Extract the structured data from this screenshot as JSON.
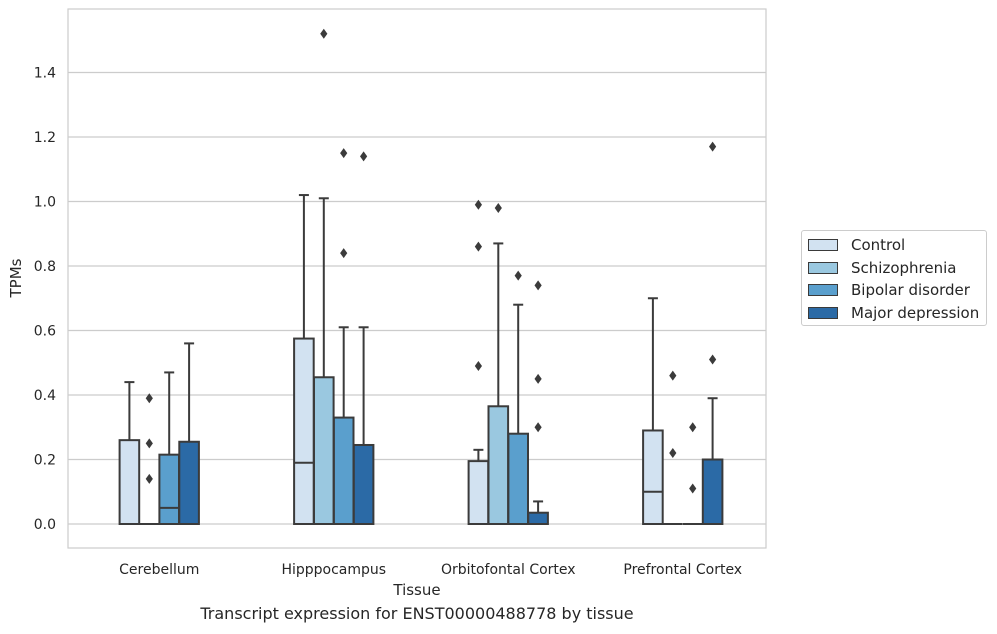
{
  "chart_data": {
    "type": "box",
    "title": "",
    "caption": "Transcript expression for ENST00000488778 by tissue",
    "xlabel": "Tissue",
    "ylabel": "TPMs",
    "ylim": [
      -0.07,
      1.6
    ],
    "yticks": [
      "0.0",
      "0.2",
      "0.4",
      "0.6",
      "0.8",
      "1.0",
      "1.2",
      "1.4"
    ],
    "grid": "horizontal",
    "legend_position": "right",
    "categories": [
      "Cerebellum",
      "Hipppocampus",
      "Orbitofontal Cortex",
      "Prefrontal Cortex"
    ],
    "series": [
      {
        "name": "Control",
        "color": "#d2e2f1",
        "boxes": [
          {
            "min": 0,
            "q1": 0,
            "median": 0,
            "q3": 0.26,
            "max": 0.44,
            "outliers": []
          },
          {
            "min": 0,
            "q1": 0,
            "median": 0.19,
            "q3": 0.575,
            "max": 1.02,
            "outliers": []
          },
          {
            "min": 0,
            "q1": 0,
            "median": 0,
            "q3": 0.195,
            "max": 0.23,
            "outliers": [
              0.49,
              0.86,
              0.99
            ]
          },
          {
            "min": 0,
            "q1": 0,
            "median": 0.1,
            "q3": 0.29,
            "max": 0.7,
            "outliers": []
          }
        ]
      },
      {
        "name": "Schizophrenia",
        "color": "#9ac8e0",
        "boxes": [
          {
            "min": 0,
            "q1": 0,
            "median": 0,
            "q3": 0,
            "max": 0,
            "outliers": [
              0.14,
              0.25,
              0.39
            ]
          },
          {
            "min": 0,
            "q1": 0,
            "median": 0,
            "q3": 0.455,
            "max": 1.01,
            "outliers": [
              1.52
            ]
          },
          {
            "min": 0,
            "q1": 0,
            "median": 0,
            "q3": 0.365,
            "max": 0.87,
            "outliers": [
              0.98
            ]
          },
          {
            "min": 0,
            "q1": 0,
            "median": 0,
            "q3": 0,
            "max": 0,
            "outliers": [
              0.22,
              0.46
            ]
          }
        ]
      },
      {
        "name": "Bipolar disorder",
        "color": "#5a9fcd",
        "boxes": [
          {
            "min": 0,
            "q1": 0,
            "median": 0.05,
            "q3": 0.215,
            "max": 0.47,
            "outliers": []
          },
          {
            "min": 0,
            "q1": 0,
            "median": 0,
            "q3": 0.33,
            "max": 0.61,
            "outliers": [
              0.84,
              1.15
            ]
          },
          {
            "min": 0,
            "q1": 0,
            "median": 0,
            "q3": 0.28,
            "max": 0.68,
            "outliers": [
              0.77
            ]
          },
          {
            "min": 0,
            "q1": 0,
            "median": 0,
            "q3": 0,
            "max": 0,
            "outliers": [
              0.11,
              0.3
            ]
          }
        ]
      },
      {
        "name": "Major depression",
        "color": "#2b6aa6",
        "boxes": [
          {
            "min": 0,
            "q1": 0,
            "median": 0,
            "q3": 0.255,
            "max": 0.56,
            "outliers": []
          },
          {
            "min": 0,
            "q1": 0,
            "median": 0,
            "q3": 0.245,
            "max": 0.61,
            "outliers": [
              1.14
            ]
          },
          {
            "min": 0,
            "q1": 0,
            "median": 0,
            "q3": 0.035,
            "max": 0.07,
            "outliers": [
              0.3,
              0.45,
              0.74
            ]
          },
          {
            "min": 0,
            "q1": 0,
            "median": 0,
            "q3": 0.2,
            "max": 0.39,
            "outliers": [
              0.51,
              1.17
            ]
          }
        ]
      }
    ]
  }
}
